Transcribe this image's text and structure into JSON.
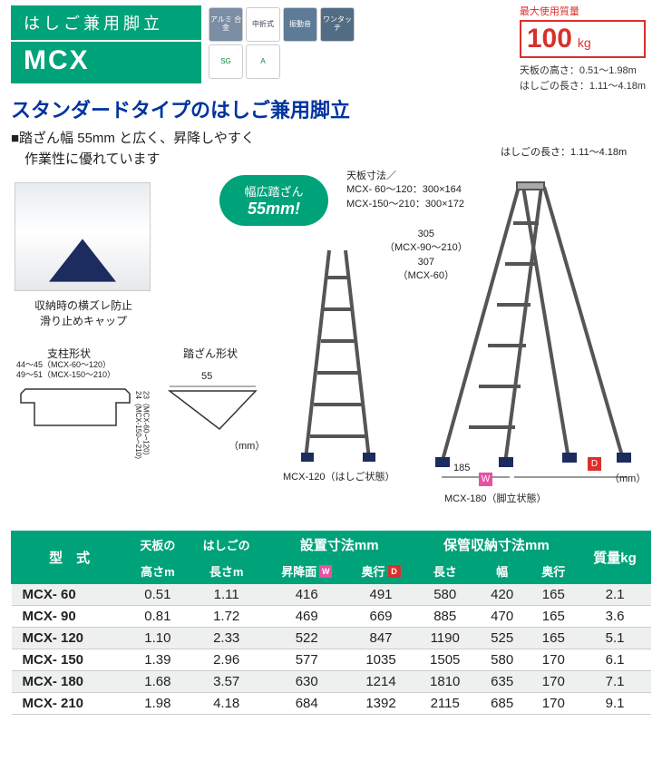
{
  "header": {
    "line1": "はしご兼用脚立",
    "model": "MCX",
    "badges": {
      "alumi": "アルミ\n合金",
      "fold": "中折式",
      "vib": "振動音",
      "one": "ワンタッチ",
      "sg": "SG",
      "jla": "A"
    }
  },
  "load": {
    "label": "最大使用質量",
    "value": "100",
    "unit": "kg",
    "spec1": "天板の高さ：0.51〜1.98m",
    "spec2": "はしごの長さ：1.11〜4.18m"
  },
  "tagline": "スタンダードタイプのはしご兼用脚立",
  "bullet": "■踏ざん幅 55mm と広く、昇降しやすく\n　作業性に優れています",
  "pill": {
    "line1": "幅広踏ざん",
    "line2": "55mm!"
  },
  "part_caption": "収納時の横ズレ防止\n滑り止めキャップ",
  "profiles": {
    "leg_label": "支柱形状",
    "leg_dim1": "44〜45（MCX-60〜120）",
    "leg_dim2": "49〜51（MCX-150〜210）",
    "leg_dim3": "23（MCX-60〜120）",
    "leg_dim4": "24（MCX-150〜210）",
    "step_label": "踏ざん形状",
    "step_w": "55",
    "unit": "（mm）"
  },
  "diag": {
    "top_spec1": "天板寸法／",
    "top_spec2": "MCX- 60〜120：300×164",
    "top_spec3": "MCX-150〜210：300×172",
    "top_len": "はしごの長さ：1.11〜4.18m",
    "h305": "305",
    "h305_note": "（MCX-90〜210）",
    "h307": "307",
    "h307_note": "（MCX-60）",
    "w185": "185",
    "w_mark": "W",
    "d_mark": "D",
    "unit": "（mm）",
    "cap_open": "MCX-120（はしご状態）",
    "cap_step": "MCX-180（脚立状態）"
  },
  "table": {
    "head": {
      "model": "型　式",
      "h": "天板の",
      "h2": "高さm",
      "l": "はしごの",
      "l2": "長さm",
      "install": "設置寸法mm",
      "install_w": "昇降面",
      "install_d": "奥行",
      "store": "保管収納寸法mm",
      "store_l": "長さ",
      "store_w": "幅",
      "store_d": "奥行",
      "mass": "質量kg"
    },
    "rows": [
      {
        "m": "MCX-  60",
        "h": "0.51",
        "l": "1.11",
        "iw": "416",
        "id": "491",
        "sl": "580",
        "sw": "420",
        "sd": "165",
        "kg": "2.1"
      },
      {
        "m": "MCX-  90",
        "h": "0.81",
        "l": "1.72",
        "iw": "469",
        "id": "669",
        "sl": "885",
        "sw": "470",
        "sd": "165",
        "kg": "3.6"
      },
      {
        "m": "MCX- 120",
        "h": "1.10",
        "l": "2.33",
        "iw": "522",
        "id": "847",
        "sl": "1190",
        "sw": "525",
        "sd": "165",
        "kg": "5.1"
      },
      {
        "m": "MCX- 150",
        "h": "1.39",
        "l": "2.96",
        "iw": "577",
        "id": "1035",
        "sl": "1505",
        "sw": "580",
        "sd": "170",
        "kg": "6.1"
      },
      {
        "m": "MCX- 180",
        "h": "1.68",
        "l": "3.57",
        "iw": "630",
        "id": "1214",
        "sl": "1810",
        "sw": "635",
        "sd": "170",
        "kg": "7.1"
      },
      {
        "m": "MCX- 210",
        "h": "1.98",
        "l": "4.18",
        "iw": "684",
        "id": "1392",
        "sl": "2115",
        "sw": "685",
        "sd": "170",
        "kg": "9.1"
      }
    ]
  },
  "colors": {
    "brand": "#00a27a",
    "accent_red": "#d9302c",
    "accent_pink": "#ea4fa3",
    "heading_blue": "#0033a0"
  }
}
